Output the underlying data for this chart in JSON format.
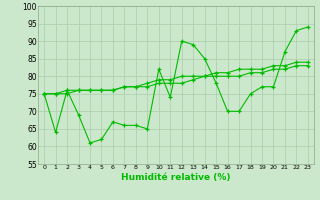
{
  "xlabel": "Humidité relative (%)",
  "background_color": "#cce8cc",
  "grid_color": "#aaccaa",
  "line_color": "#00bb00",
  "x_values": [
    0,
    1,
    2,
    3,
    4,
    5,
    6,
    7,
    8,
    9,
    10,
    11,
    12,
    13,
    14,
    15,
    16,
    17,
    18,
    19,
    20,
    21,
    22,
    23
  ],
  "line1": [
    75,
    64,
    76,
    69,
    61,
    62,
    67,
    66,
    66,
    65,
    82,
    74,
    90,
    89,
    85,
    78,
    70,
    70,
    75,
    77,
    77,
    87,
    93,
    94
  ],
  "line2": [
    75,
    75,
    75,
    76,
    76,
    76,
    76,
    77,
    77,
    77,
    78,
    78,
    78,
    79,
    80,
    80,
    80,
    80,
    81,
    81,
    82,
    82,
    83,
    83
  ],
  "line3": [
    75,
    75,
    76,
    76,
    76,
    76,
    76,
    77,
    77,
    78,
    79,
    79,
    80,
    80,
    80,
    81,
    81,
    82,
    82,
    82,
    83,
    83,
    84,
    84
  ],
  "ylim": [
    55,
    100
  ],
  "yticks": [
    55,
    60,
    65,
    70,
    75,
    80,
    85,
    90,
    95,
    100
  ]
}
